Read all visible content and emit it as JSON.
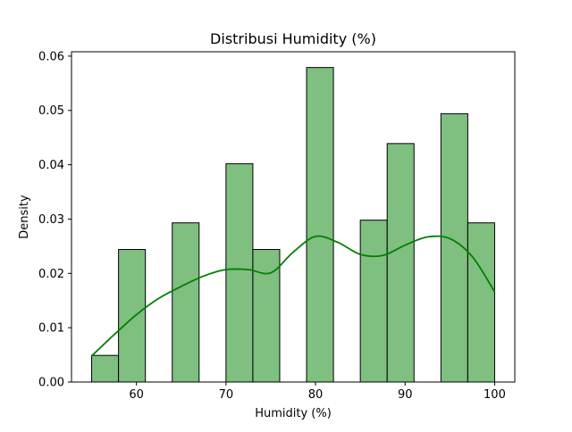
{
  "chart_data": {
    "type": "bar",
    "title": "Distribusi Humidity (%)",
    "xlabel": "Humidity (%)",
    "ylabel": "Density",
    "xlim": [
      52.75,
      102.25
    ],
    "ylim": [
      0,
      0.0608
    ],
    "x_ticks": [
      60,
      70,
      80,
      90,
      100
    ],
    "y_ticks": [
      0.0,
      0.01,
      0.02,
      0.03,
      0.04,
      0.05,
      0.06
    ],
    "y_tick_labels": [
      "0.00",
      "0.01",
      "0.02",
      "0.03",
      "0.04",
      "0.05",
      "0.06"
    ],
    "bin_edges": [
      55,
      58,
      61,
      64,
      67,
      70,
      73,
      76,
      79,
      82,
      85,
      88,
      91,
      94,
      97,
      100
    ],
    "densities": [
      0.0049,
      0.0244,
      0,
      0.0293,
      0,
      0.0402,
      0.0244,
      0,
      0.0579,
      0,
      0.0298,
      0.0439,
      0,
      0.0494,
      0.0293
    ],
    "kde": {
      "x": [
        55,
        57.5,
        60,
        62.5,
        65,
        67.5,
        70,
        72.5,
        75,
        77.5,
        80,
        82.5,
        85,
        87.5,
        90,
        92.5,
        95,
        97.5,
        100
      ],
      "y": [
        0.0048,
        0.0087,
        0.0124,
        0.0154,
        0.0176,
        0.0195,
        0.0207,
        0.0207,
        0.0201,
        0.0239,
        0.0268,
        0.0257,
        0.0235,
        0.0233,
        0.0252,
        0.0267,
        0.0264,
        0.0231,
        0.0166
      ]
    },
    "bar_color": "#7fbf7f",
    "bar_edge_color": "#000000",
    "kde_color": "#008000",
    "grid": false
  }
}
